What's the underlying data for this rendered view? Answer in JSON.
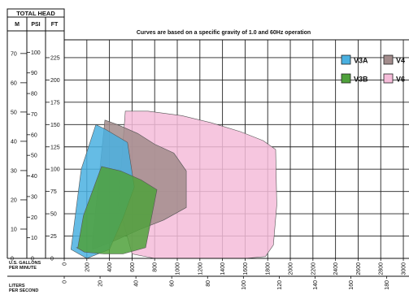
{
  "chart_data": {
    "type": "area",
    "title": "Curves are based on a specific gravity of 1.0 and 60Hz operation",
    "header": "TOTAL HEAD",
    "unit_headers": {
      "m": "M",
      "psi": "PSI",
      "ft": "FT"
    },
    "xlabel": "U.S. GALLONS PER MINUTE",
    "xlabel_lines": [
      "U.S. GALLONS",
      "PER MINUTE"
    ],
    "x2label_lines": [
      "LITERS",
      "PER SECOND"
    ],
    "xlim": [
      0,
      3050
    ],
    "ylim": [
      0,
      245
    ],
    "ft_ticks": [
      0,
      25,
      50,
      75,
      100,
      125,
      150,
      175,
      200,
      225
    ],
    "psi_ticks": [
      0,
      10,
      20,
      30,
      40,
      50,
      60,
      70,
      80,
      90,
      100
    ],
    "m_ticks": [
      0,
      10,
      20,
      30,
      40,
      50,
      60,
      70
    ],
    "gpm_ticks": [
      0,
      200,
      400,
      600,
      800,
      1000,
      1200,
      1400,
      1600,
      1800,
      2000,
      2200,
      2400,
      2600,
      2800,
      3000
    ],
    "lps_ticks": [
      0,
      20,
      40,
      60,
      80,
      100,
      120,
      140,
      160,
      180
    ],
    "grid": true,
    "legend_position": "top-right",
    "series": [
      {
        "name": "V6",
        "color": "#f5bcd9",
        "x": [
          480,
          540,
          740,
          1040,
          1300,
          1560,
          1760,
          1870,
          1880,
          1850,
          1780,
          1600,
          1300,
          1000,
          800,
          600,
          480
        ],
        "y": [
          60,
          165,
          165,
          160,
          152,
          142,
          132,
          122,
          60,
          15,
          2,
          0,
          0,
          0,
          0,
          5,
          60
        ]
      },
      {
        "name": "V4",
        "color": "#a28c8c",
        "x": [
          250,
          360,
          470,
          650,
          800,
          970,
          1080,
          1080,
          880,
          660,
          450,
          250,
          250
        ],
        "y": [
          20,
          155,
          150,
          140,
          128,
          118,
          98,
          57,
          43,
          32,
          20,
          10,
          20
        ]
      },
      {
        "name": "V3A",
        "color": "#4ab0e0",
        "x": [
          60,
          150,
          280,
          360,
          560,
          620,
          520,
          400,
          200,
          60
        ],
        "y": [
          10,
          100,
          150,
          145,
          130,
          80,
          45,
          10,
          0,
          10
        ]
      },
      {
        "name": "V3B",
        "color": "#4fa13b",
        "x": [
          120,
          170,
          330,
          500,
          680,
          820,
          720,
          520,
          350,
          180,
          110,
          120
        ],
        "y": [
          12,
          48,
          103,
          98,
          88,
          77,
          12,
          5,
          5,
          7,
          12,
          12
        ]
      }
    ],
    "legend": [
      {
        "name": "V3A",
        "color": "#4ab0e0"
      },
      {
        "name": "V4",
        "color": "#a28c8c"
      },
      {
        "name": "V3B",
        "color": "#4fa13b"
      },
      {
        "name": "V6",
        "color": "#f5bcd9"
      }
    ]
  }
}
